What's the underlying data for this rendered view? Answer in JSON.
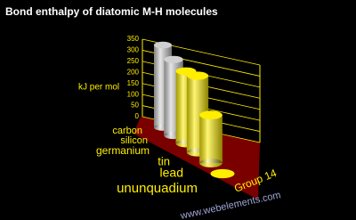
{
  "chart_data": {
    "type": "bar",
    "title": "Bond enthalpy of diatomic M-H molecules",
    "y_label": "kJ per mol",
    "x_label": "Group 14",
    "footer": "www.webelements.com",
    "categories": [
      "carbon",
      "silicon",
      "germanium",
      "tin",
      "lead",
      "ununquadium"
    ],
    "values": [
      338,
      293,
      263,
      264,
      157,
      null
    ],
    "colors": [
      "#d0d0d0",
      "#d0d0d0",
      "#ffee00",
      "#ffee00",
      "#ffee00",
      "#ffee00"
    ],
    "ylim": [
      0,
      350
    ],
    "yticks": [
      0,
      50,
      100,
      150,
      200,
      250,
      300,
      350
    ],
    "grid": true
  }
}
